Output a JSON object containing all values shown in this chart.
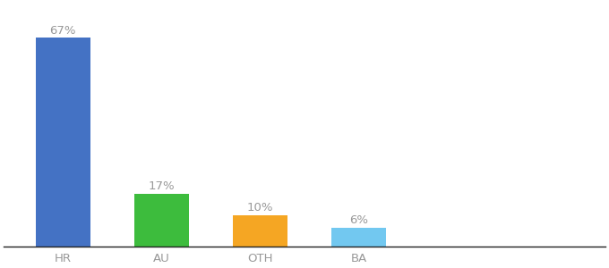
{
  "categories": [
    "HR",
    "AU",
    "OTH",
    "BA"
  ],
  "values": [
    67,
    17,
    10,
    6
  ],
  "bar_colors": [
    "#4472c4",
    "#3dbc3d",
    "#f5a623",
    "#72c8f0"
  ],
  "labels": [
    "67%",
    "17%",
    "10%",
    "6%"
  ],
  "background_color": "#ffffff",
  "ylim": [
    0,
    78
  ],
  "label_fontsize": 9.5,
  "tick_fontsize": 9.5,
  "bar_width": 0.55,
  "label_color": "#999999"
}
